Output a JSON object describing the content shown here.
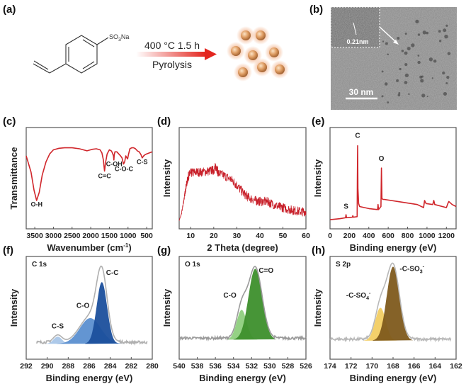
{
  "panel_labels": {
    "a": "(a)",
    "b": "(b)",
    "c": "(c)",
    "d": "(d)",
    "e": "(e)",
    "f": "(f)",
    "g": "(g)",
    "h": "(h)"
  },
  "scheme": {
    "substituent": "SO",
    "substituent_sub": "3",
    "substituent_tail": "Na",
    "condition": "400 °C  1.5 h",
    "process": "Pyrolysis",
    "arrow_color": "#e3261f",
    "particle_color": "#d9945a"
  },
  "tem": {
    "inset_label": "0.21nm",
    "scale_bar": "30 nm"
  },
  "chart_data": [
    {
      "id": "c",
      "type": "line",
      "xlabel": "Wavenumber (cm⁻¹)",
      "xlabel_main": "Wavenumber (cm",
      "xlabel_sup": "-1",
      "xlabel_end": ")",
      "ylabel": "Transmittance",
      "xlim": [
        3730,
        350
      ],
      "ylim": [
        0,
        1
      ],
      "xticks": [
        3500,
        3000,
        2500,
        2000,
        1500,
        1000,
        500
      ],
      "color": "#d0262b",
      "x": [
        3730,
        3600,
        3520,
        3450,
        3380,
        3300,
        3200,
        3100,
        3000,
        2850,
        2700,
        2500,
        2300,
        2100,
        1950,
        1850,
        1750,
        1700,
        1660,
        1630,
        1600,
        1560,
        1500,
        1450,
        1420,
        1390,
        1380,
        1370,
        1350,
        1300,
        1250,
        1200,
        1160,
        1120,
        1090,
        1060,
        1030,
        1010,
        990,
        950,
        900,
        850,
        800,
        750,
        700,
        650,
        620,
        580,
        550,
        500,
        350
      ],
      "y": [
        0.72,
        0.56,
        0.38,
        0.28,
        0.36,
        0.53,
        0.66,
        0.74,
        0.78,
        0.795,
        0.8,
        0.8,
        0.79,
        0.77,
        0.785,
        0.79,
        0.78,
        0.75,
        0.68,
        0.57,
        0.66,
        0.74,
        0.78,
        0.77,
        0.75,
        0.72,
        0.68,
        0.73,
        0.76,
        0.76,
        0.74,
        0.72,
        0.7,
        0.64,
        0.66,
        0.72,
        0.7,
        0.69,
        0.73,
        0.79,
        0.8,
        0.8,
        0.79,
        0.77,
        0.76,
        0.73,
        0.7,
        0.72,
        0.73,
        0.74,
        0.76
      ],
      "annotations": [
        {
          "text": "O-H",
          "x": 3450,
          "y": 0.22
        },
        {
          "text": "C=C",
          "x": 1630,
          "y": 0.5
        },
        {
          "text": "C-OH",
          "x": 1370,
          "y": 0.62
        },
        {
          "text": "C-O-C",
          "x": 1110,
          "y": 0.57
        },
        {
          "text": "C-S",
          "x": 620,
          "y": 0.64
        }
      ]
    },
    {
      "id": "d",
      "type": "line",
      "xlabel": "2 Theta (degree)",
      "ylabel": "Intensity",
      "xlim": [
        5,
        60
      ],
      "ylim": [
        0,
        1
      ],
      "xticks": [
        10,
        20,
        30,
        40,
        50,
        60
      ],
      "color": "#c8202a",
      "x": [
        5,
        6,
        7,
        8,
        9,
        10,
        12,
        15,
        18,
        20,
        21,
        22,
        25,
        28,
        30,
        33,
        35,
        38,
        40,
        43,
        45,
        48,
        50,
        53,
        55,
        58,
        60
      ],
      "y": [
        0.08,
        0.15,
        0.28,
        0.42,
        0.52,
        0.55,
        0.56,
        0.56,
        0.57,
        0.58,
        0.62,
        0.55,
        0.52,
        0.48,
        0.43,
        0.35,
        0.31,
        0.28,
        0.27,
        0.27,
        0.25,
        0.22,
        0.21,
        0.19,
        0.18,
        0.17,
        0.17
      ]
    },
    {
      "id": "e",
      "type": "line",
      "xlabel": "Binding energy (eV)",
      "ylabel": "Intensity",
      "xlim": [
        0,
        1300
      ],
      "ylim": [
        0,
        1
      ],
      "xticks": [
        0,
        200,
        400,
        600,
        800,
        1000,
        1200
      ],
      "color": "#d0262b",
      "x": [
        0,
        100,
        160,
        165,
        170,
        230,
        235,
        240,
        280,
        282,
        285,
        288,
        295,
        305,
        400,
        490,
        495,
        500,
        525,
        530,
        535,
        545,
        560,
        700,
        900,
        965,
        975,
        990,
        1060,
        1070,
        1080,
        1200,
        1215,
        1225,
        1260,
        1300
      ],
      "y": [
        0.09,
        0.1,
        0.11,
        0.14,
        0.11,
        0.115,
        0.13,
        0.115,
        0.12,
        0.5,
        0.82,
        0.4,
        0.25,
        0.22,
        0.2,
        0.19,
        0.24,
        0.19,
        0.22,
        0.6,
        0.3,
        0.29,
        0.29,
        0.27,
        0.24,
        0.21,
        0.28,
        0.25,
        0.24,
        0.28,
        0.24,
        0.21,
        0.25,
        0.27,
        0.24,
        0.22
      ],
      "annotations": [
        {
          "text": "S",
          "x": 165,
          "y": 0.2
        },
        {
          "text": "C",
          "x": 285,
          "y": 0.9
        },
        {
          "text": "O",
          "x": 530,
          "y": 0.67
        }
      ]
    },
    {
      "id": "f",
      "type": "area",
      "title": "C 1s",
      "xlabel": "Binding energy (eV)",
      "ylabel": "Intensity",
      "xlim": [
        292,
        280
      ],
      "ylim": [
        0,
        1
      ],
      "xticks": [
        292,
        290,
        288,
        286,
        284,
        282,
        280
      ],
      "envelope_color": "#b0b0b0",
      "baseline": 0.15,
      "data_range": [
        291,
        280.5
      ],
      "peaks": [
        {
          "name": "C-S",
          "center": 289.0,
          "height": 0.07,
          "sigma": 0.4,
          "color": "#a9c6e8",
          "label_x": 289.0,
          "label_y": 0.3
        },
        {
          "name": "C-O",
          "center": 285.9,
          "height": 0.25,
          "sigma": 1.0,
          "color": "#5b8fd0",
          "label_x": 286.6,
          "label_y": 0.5
        },
        {
          "name": "C-C",
          "center": 284.8,
          "height": 0.6,
          "sigma": 0.5,
          "color": "#1b4f9c",
          "label_x": 283.8,
          "label_y": 0.82
        }
      ]
    },
    {
      "id": "g",
      "type": "area",
      "title": "O 1s",
      "xlabel": "Binding energy (eV)",
      "ylabel": "Intensity",
      "xlim": [
        540,
        526
      ],
      "ylim": [
        0,
        1
      ],
      "xticks": [
        540,
        538,
        536,
        534,
        532,
        530,
        528,
        526
      ],
      "envelope_color": "#9a9a9a",
      "baseline": 0.19,
      "data_range": [
        540,
        526
      ],
      "peaks": [
        {
          "name": "C-O",
          "center": 533.1,
          "height": 0.29,
          "sigma": 0.55,
          "color": "#8fcf7e",
          "label_x": 534.4,
          "label_y": 0.6
        },
        {
          "name": "C=O",
          "center": 531.6,
          "height": 0.69,
          "sigma": 0.75,
          "color": "#3d8f2c",
          "label_x": 530.4,
          "label_y": 0.84
        }
      ]
    },
    {
      "id": "h",
      "type": "area",
      "title": "S 2p",
      "xlabel": "Binding energy (eV)",
      "ylabel": "Intensity",
      "xlim": [
        174,
        162
      ],
      "ylim": [
        0,
        1
      ],
      "xticks": [
        174,
        172,
        170,
        168,
        166,
        164,
        162
      ],
      "envelope_color": "#b8b8b8",
      "baseline": 0.18,
      "data_range": [
        174,
        162.5
      ],
      "peaks": [
        {
          "name": "-C-SO",
          "sub": "4",
          "sup": "-",
          "center": 169.2,
          "height": 0.32,
          "sigma": 0.5,
          "color": "#f2cd63",
          "label_x": 171.3,
          "label_y": 0.6
        },
        {
          "name": "-C-SO",
          "sub": "3",
          "sup": "-",
          "center": 168.0,
          "height": 0.72,
          "sigma": 0.6,
          "color": "#7e5a1c",
          "label_x": 166.2,
          "label_y": 0.86
        }
      ]
    }
  ]
}
